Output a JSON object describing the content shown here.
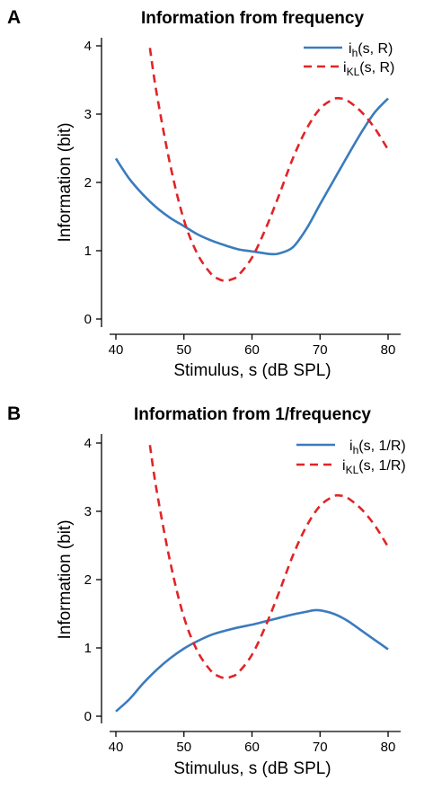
{
  "chart_data": [
    {
      "panel": "A",
      "type": "line",
      "title": "Information from frequency",
      "xlabel": "Stimulus, s (dB SPL)",
      "ylabel": "Information (bit)",
      "xlim": [
        40,
        80
      ],
      "ylim": [
        0,
        4
      ],
      "xticks": [
        "40",
        "50",
        "60",
        "70",
        "80"
      ],
      "yticks": [
        "0",
        "1",
        "2",
        "3",
        "4"
      ],
      "grid": false,
      "legend": "top-right",
      "series": [
        {
          "legend_main": "i",
          "legend_sub": "h",
          "legend_args": "(s, R)",
          "color": "#3A7BBF",
          "dash": "solid",
          "x": [
            40,
            42,
            44,
            46,
            48,
            50,
            52,
            54,
            56,
            58,
            60,
            62,
            63,
            64,
            66,
            68,
            70,
            72,
            74,
            76,
            78,
            80
          ],
          "y": [
            2.35,
            2.05,
            1.82,
            1.63,
            1.48,
            1.36,
            1.24,
            1.15,
            1.08,
            1.02,
            0.99,
            0.96,
            0.95,
            0.96,
            1.05,
            1.32,
            1.68,
            2.03,
            2.38,
            2.72,
            3.02,
            3.23
          ]
        },
        {
          "legend_main": "i",
          "legend_sub": "KL",
          "legend_args": "(s, R)",
          "color": "#E02427",
          "dash": "dashed",
          "x": [
            45,
            46,
            48,
            50,
            52,
            54,
            55,
            56,
            57,
            58,
            60,
            62,
            64,
            66,
            68,
            70,
            72,
            73,
            74,
            76,
            78,
            80
          ],
          "y": [
            3.97,
            3.3,
            2.25,
            1.45,
            0.95,
            0.66,
            0.59,
            0.56,
            0.58,
            0.64,
            0.9,
            1.32,
            1.82,
            2.35,
            2.78,
            3.08,
            3.22,
            3.23,
            3.2,
            3.04,
            2.8,
            2.48
          ]
        }
      ]
    },
    {
      "panel": "B",
      "type": "line",
      "title": "Information from 1/frequency",
      "xlabel": "Stimulus, s (dB SPL)",
      "ylabel": "Information (bit)",
      "xlim": [
        40,
        80
      ],
      "ylim": [
        0,
        4
      ],
      "xticks": [
        "40",
        "50",
        "60",
        "70",
        "80"
      ],
      "yticks": [
        "0",
        "1",
        "2",
        "3",
        "4"
      ],
      "grid": false,
      "legend": "top-right",
      "series": [
        {
          "legend_main": "i",
          "legend_sub": "h",
          "legend_args": "(s, 1/R)",
          "color": "#3A7BBF",
          "dash": "solid",
          "x": [
            40,
            42,
            44,
            46,
            48,
            50,
            52,
            54,
            56,
            58,
            60,
            62,
            64,
            66,
            68,
            69,
            70,
            72,
            74,
            76,
            78,
            80
          ],
          "y": [
            0.07,
            0.25,
            0.48,
            0.68,
            0.85,
            0.99,
            1.1,
            1.19,
            1.25,
            1.3,
            1.34,
            1.39,
            1.44,
            1.49,
            1.53,
            1.55,
            1.55,
            1.5,
            1.4,
            1.26,
            1.12,
            0.98
          ]
        },
        {
          "legend_main": "i",
          "legend_sub": "KL",
          "legend_args": "(s, 1/R)",
          "color": "#E02427",
          "dash": "dashed",
          "x": [
            45,
            46,
            48,
            50,
            52,
            54,
            55,
            56,
            57,
            58,
            60,
            62,
            64,
            66,
            68,
            70,
            72,
            73,
            74,
            76,
            78,
            80
          ],
          "y": [
            3.97,
            3.3,
            2.25,
            1.45,
            0.95,
            0.66,
            0.59,
            0.56,
            0.58,
            0.64,
            0.9,
            1.32,
            1.82,
            2.35,
            2.78,
            3.08,
            3.22,
            3.23,
            3.2,
            3.04,
            2.8,
            2.48
          ]
        }
      ]
    }
  ]
}
